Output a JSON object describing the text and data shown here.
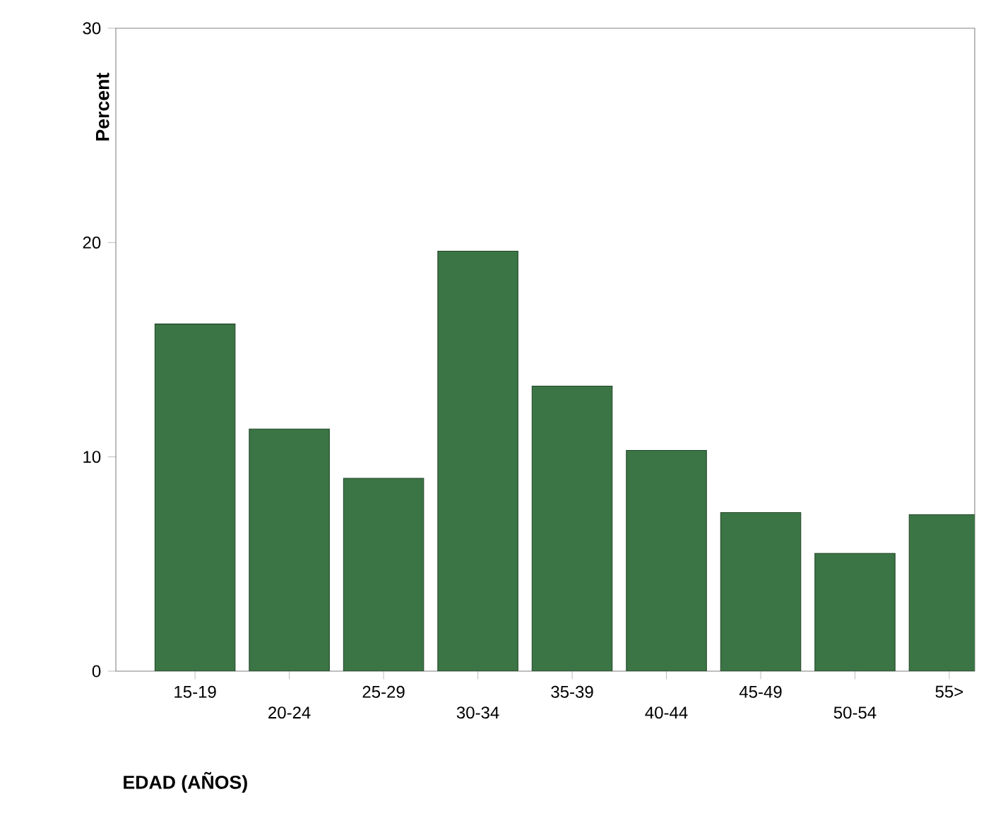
{
  "chart_data": {
    "type": "bar",
    "xlabel": "EDAD (AÑOS)",
    "ylabel": "Percent",
    "categories": [
      "15-19",
      "20-24",
      "25-29",
      "30-34",
      "35-39",
      "40-44",
      "45-49",
      "50-54",
      "55>"
    ],
    "values": [
      16.2,
      11.3,
      9.0,
      19.6,
      13.3,
      10.3,
      7.4,
      5.5,
      7.3
    ],
    "color": "#3b7545",
    "ylim": [
      0,
      30
    ],
    "yticks": [
      0,
      10,
      20,
      30
    ]
  }
}
